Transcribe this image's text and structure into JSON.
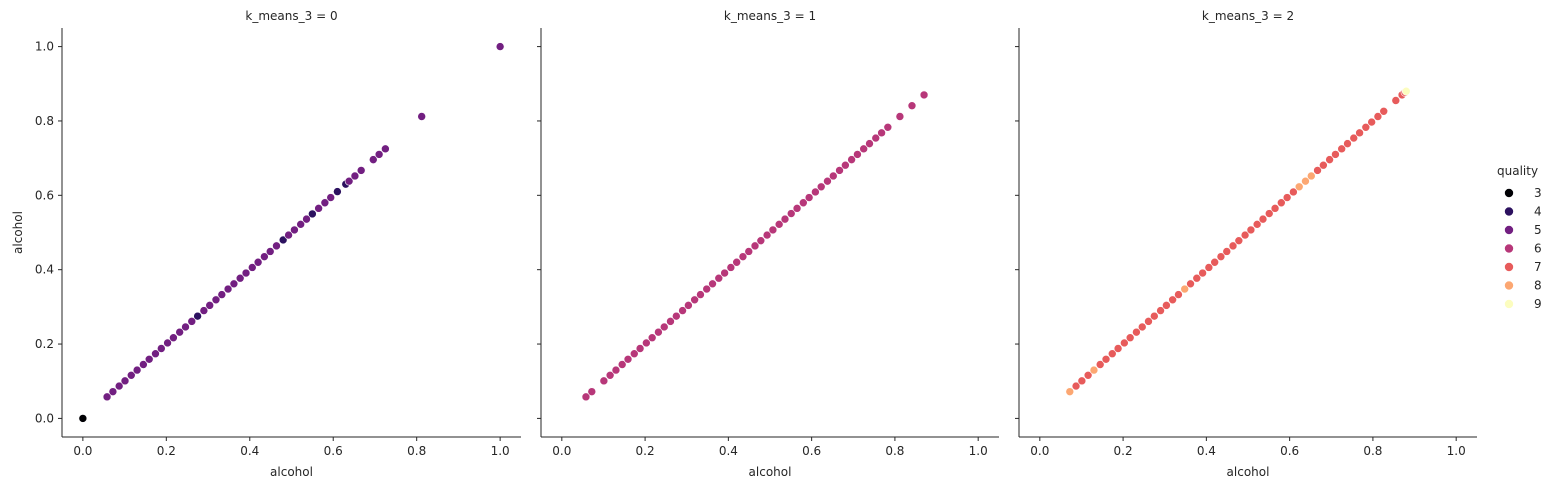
{
  "chart_data": {
    "type": "scatter",
    "facet_variable": "k_means_3",
    "xlabel": "alcohol",
    "ylabel": "alcohol",
    "xlim": [
      -0.05,
      1.05
    ],
    "ylim": [
      -0.05,
      1.05
    ],
    "x_ticks": [
      "0.0",
      "0.2",
      "0.4",
      "0.6",
      "0.8",
      "1.0"
    ],
    "y_ticks": [
      "0.0",
      "0.2",
      "0.4",
      "0.6",
      "0.8",
      "1.0"
    ],
    "grid": false,
    "legend": {
      "title": "quality",
      "placement": "right",
      "entries": [
        {
          "label": "3",
          "color": "#000004"
        },
        {
          "label": "4",
          "color": "#2c115f"
        },
        {
          "label": "5",
          "color": "#721f81"
        },
        {
          "label": "6",
          "color": "#b73779"
        },
        {
          "label": "7",
          "color": "#e75b5b"
        },
        {
          "label": "8",
          "color": "#fca772"
        },
        {
          "label": "9",
          "color": "#fcfdbf"
        }
      ]
    },
    "facets": [
      {
        "title": "k_means_3 = 0",
        "series": [
          {
            "quality": "3",
            "points": [
              [
                0.0,
                0.0
              ]
            ]
          },
          {
            "quality": "4",
            "points": [
              [
                0.275,
                0.275
              ],
              [
                0.48,
                0.48
              ],
              [
                0.55,
                0.55
              ],
              [
                0.61,
                0.61
              ],
              [
                0.63,
                0.63
              ]
            ]
          },
          {
            "quality": "5",
            "points": [
              [
                0.058,
                0.058
              ],
              [
                0.072,
                0.072
              ],
              [
                0.087,
                0.087
              ],
              [
                0.101,
                0.101
              ],
              [
                0.116,
                0.116
              ],
              [
                0.13,
                0.13
              ],
              [
                0.145,
                0.145
              ],
              [
                0.159,
                0.159
              ],
              [
                0.174,
                0.174
              ],
              [
                0.188,
                0.188
              ],
              [
                0.203,
                0.203
              ],
              [
                0.217,
                0.217
              ],
              [
                0.232,
                0.232
              ],
              [
                0.246,
                0.246
              ],
              [
                0.261,
                0.261
              ],
              [
                0.29,
                0.29
              ],
              [
                0.304,
                0.304
              ],
              [
                0.319,
                0.319
              ],
              [
                0.333,
                0.333
              ],
              [
                0.348,
                0.348
              ],
              [
                0.362,
                0.362
              ],
              [
                0.377,
                0.377
              ],
              [
                0.391,
                0.391
              ],
              [
                0.406,
                0.406
              ],
              [
                0.42,
                0.42
              ],
              [
                0.435,
                0.435
              ],
              [
                0.449,
                0.449
              ],
              [
                0.464,
                0.464
              ],
              [
                0.493,
                0.493
              ],
              [
                0.507,
                0.507
              ],
              [
                0.522,
                0.522
              ],
              [
                0.536,
                0.536
              ],
              [
                0.565,
                0.565
              ],
              [
                0.58,
                0.58
              ],
              [
                0.594,
                0.594
              ],
              [
                0.638,
                0.638
              ],
              [
                0.652,
                0.652
              ],
              [
                0.667,
                0.667
              ],
              [
                0.696,
                0.696
              ],
              [
                0.71,
                0.71
              ],
              [
                0.725,
                0.725
              ],
              [
                0.812,
                0.812
              ],
              [
                1.0,
                1.0
              ]
            ]
          }
        ]
      },
      {
        "title": "k_means_3 = 1",
        "series": [
          {
            "quality": "6",
            "points": [
              [
                0.058,
                0.058
              ],
              [
                0.072,
                0.072
              ],
              [
                0.101,
                0.101
              ],
              [
                0.116,
                0.116
              ],
              [
                0.13,
                0.13
              ],
              [
                0.145,
                0.145
              ],
              [
                0.159,
                0.159
              ],
              [
                0.174,
                0.174
              ],
              [
                0.188,
                0.188
              ],
              [
                0.203,
                0.203
              ],
              [
                0.217,
                0.217
              ],
              [
                0.232,
                0.232
              ],
              [
                0.246,
                0.246
              ],
              [
                0.261,
                0.261
              ],
              [
                0.275,
                0.275
              ],
              [
                0.29,
                0.29
              ],
              [
                0.304,
                0.304
              ],
              [
                0.319,
                0.319
              ],
              [
                0.333,
                0.333
              ],
              [
                0.348,
                0.348
              ],
              [
                0.362,
                0.362
              ],
              [
                0.377,
                0.377
              ],
              [
                0.391,
                0.391
              ],
              [
                0.406,
                0.406
              ],
              [
                0.42,
                0.42
              ],
              [
                0.435,
                0.435
              ],
              [
                0.449,
                0.449
              ],
              [
                0.464,
                0.464
              ],
              [
                0.478,
                0.478
              ],
              [
                0.493,
                0.493
              ],
              [
                0.507,
                0.507
              ],
              [
                0.522,
                0.522
              ],
              [
                0.536,
                0.536
              ],
              [
                0.551,
                0.551
              ],
              [
                0.565,
                0.565
              ],
              [
                0.58,
                0.58
              ],
              [
                0.594,
                0.594
              ],
              [
                0.609,
                0.609
              ],
              [
                0.623,
                0.623
              ],
              [
                0.638,
                0.638
              ],
              [
                0.652,
                0.652
              ],
              [
                0.667,
                0.667
              ],
              [
                0.681,
                0.681
              ],
              [
                0.696,
                0.696
              ],
              [
                0.71,
                0.71
              ],
              [
                0.725,
                0.725
              ],
              [
                0.739,
                0.739
              ],
              [
                0.754,
                0.754
              ],
              [
                0.768,
                0.768
              ],
              [
                0.783,
                0.783
              ],
              [
                0.812,
                0.812
              ],
              [
                0.841,
                0.841
              ],
              [
                0.87,
                0.87
              ]
            ]
          }
        ]
      },
      {
        "title": "k_means_3 = 2",
        "series": [
          {
            "quality": "7",
            "points": [
              [
                0.087,
                0.087
              ],
              [
                0.101,
                0.101
              ],
              [
                0.116,
                0.116
              ],
              [
                0.145,
                0.145
              ],
              [
                0.159,
                0.159
              ],
              [
                0.174,
                0.174
              ],
              [
                0.188,
                0.188
              ],
              [
                0.203,
                0.203
              ],
              [
                0.217,
                0.217
              ],
              [
                0.232,
                0.232
              ],
              [
                0.246,
                0.246
              ],
              [
                0.261,
                0.261
              ],
              [
                0.275,
                0.275
              ],
              [
                0.29,
                0.29
              ],
              [
                0.304,
                0.304
              ],
              [
                0.319,
                0.319
              ],
              [
                0.333,
                0.333
              ],
              [
                0.362,
                0.362
              ],
              [
                0.377,
                0.377
              ],
              [
                0.391,
                0.391
              ],
              [
                0.406,
                0.406
              ],
              [
                0.42,
                0.42
              ],
              [
                0.435,
                0.435
              ],
              [
                0.449,
                0.449
              ],
              [
                0.464,
                0.464
              ],
              [
                0.478,
                0.478
              ],
              [
                0.493,
                0.493
              ],
              [
                0.507,
                0.507
              ],
              [
                0.522,
                0.522
              ],
              [
                0.536,
                0.536
              ],
              [
                0.551,
                0.551
              ],
              [
                0.565,
                0.565
              ],
              [
                0.58,
                0.58
              ],
              [
                0.594,
                0.594
              ],
              [
                0.609,
                0.609
              ],
              [
                0.667,
                0.667
              ],
              [
                0.681,
                0.681
              ],
              [
                0.696,
                0.696
              ],
              [
                0.71,
                0.71
              ],
              [
                0.725,
                0.725
              ],
              [
                0.739,
                0.739
              ],
              [
                0.754,
                0.754
              ],
              [
                0.768,
                0.768
              ],
              [
                0.783,
                0.783
              ],
              [
                0.797,
                0.797
              ],
              [
                0.812,
                0.812
              ],
              [
                0.826,
                0.826
              ],
              [
                0.855,
                0.855
              ],
              [
                0.87,
                0.87
              ],
              [
                0.877,
                0.877
              ]
            ]
          },
          {
            "quality": "8",
            "points": [
              [
                0.072,
                0.072
              ],
              [
                0.13,
                0.13
              ],
              [
                0.348,
                0.348
              ],
              [
                0.623,
                0.623
              ],
              [
                0.638,
                0.638
              ],
              [
                0.652,
                0.652
              ]
            ]
          },
          {
            "quality": "9",
            "points": [
              [
                0.88,
                0.88
              ]
            ]
          }
        ]
      }
    ]
  }
}
